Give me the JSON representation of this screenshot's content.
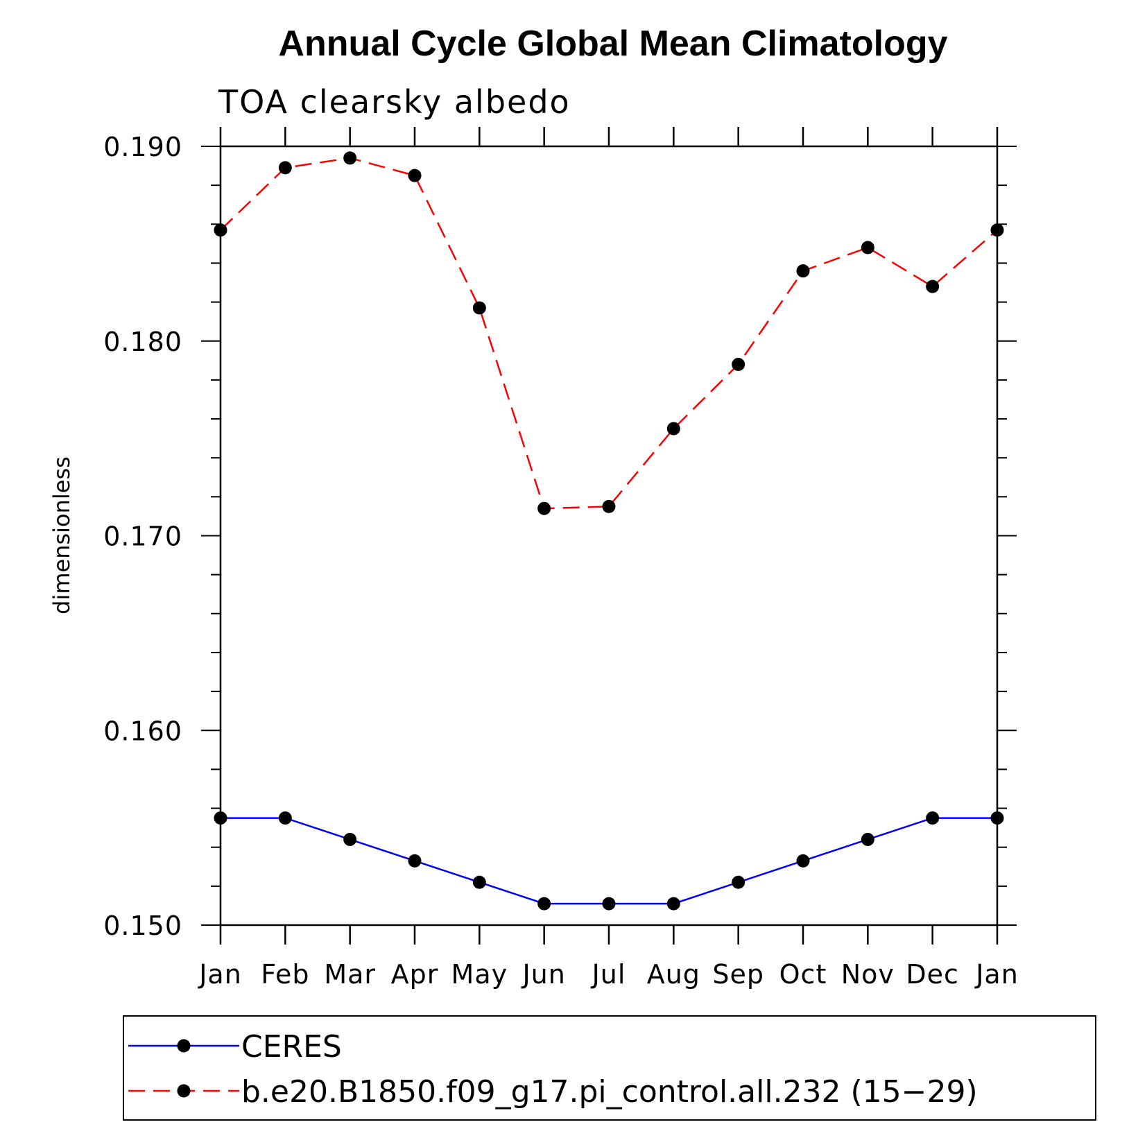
{
  "chart_data": {
    "type": "line",
    "title": "Annual Cycle Global Mean Climatology",
    "subtitle": "TOA clearsky albedo",
    "xlabel": "",
    "ylabel": "dimensionless",
    "categories": [
      "Jan",
      "Feb",
      "Mar",
      "Apr",
      "May",
      "Jun",
      "Jul",
      "Aug",
      "Sep",
      "Oct",
      "Nov",
      "Dec",
      "Jan"
    ],
    "ylim": [
      0.15,
      0.19
    ],
    "yticks": [
      "0.150",
      "0.160",
      "0.170",
      "0.180",
      "0.190"
    ],
    "ytick_values": [
      0.15,
      0.16,
      0.17,
      0.18,
      0.19
    ],
    "grid": false,
    "legend_position": "bottom",
    "series": [
      {
        "name": "CERES",
        "color": "#0000ff",
        "dash": "solid",
        "values": [
          0.1555,
          0.1555,
          0.1544,
          0.1533,
          0.1522,
          0.1511,
          0.1511,
          0.1511,
          0.1522,
          0.1533,
          0.1544,
          0.1555,
          0.1555
        ]
      },
      {
        "name": "b.e20.B1850.f09_g17.pi_control.all.232 (15−29)",
        "color": "#ff0000",
        "dash": "dashed",
        "values": [
          0.1857,
          0.1889,
          0.1894,
          0.1885,
          0.1817,
          0.1714,
          0.1715,
          0.1755,
          0.1788,
          0.1836,
          0.1848,
          0.1828,
          0.1857
        ]
      }
    ]
  }
}
